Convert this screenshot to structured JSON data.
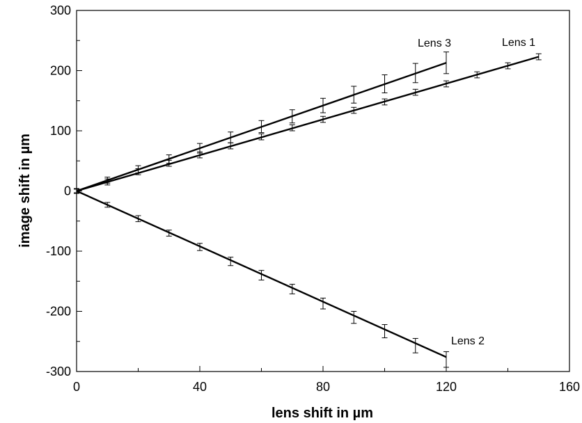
{
  "chart_data": {
    "type": "line",
    "xlabel": "lens shift in µm",
    "ylabel": "image shift in µm",
    "xlim": [
      0,
      160
    ],
    "ylim": [
      -300,
      300
    ],
    "x_ticks": [
      "0",
      "40",
      "80",
      "120",
      "160"
    ],
    "y_ticks": [
      "-300",
      "-200",
      "-100",
      "0",
      "100",
      "200",
      "300"
    ],
    "grid": false,
    "legend": "none",
    "line_color": "#000000",
    "series": [
      {
        "name": "Lens 1",
        "x": [
          0,
          10,
          20,
          30,
          40,
          50,
          60,
          70,
          80,
          90,
          100,
          110,
          120,
          130,
          140,
          150
        ],
        "y": [
          0,
          15,
          32,
          46,
          60,
          75,
          90,
          105,
          119,
          134,
          148,
          164,
          178,
          193,
          208,
          223
        ],
        "err": [
          4,
          5,
          5,
          5,
          5,
          5,
          5,
          5,
          5,
          5,
          5,
          5,
          5,
          5,
          5,
          5
        ],
        "fit": [
          [
            0,
            0
          ],
          [
            150,
            223
          ]
        ]
      },
      {
        "name": "Lens 2",
        "x": [
          0,
          10,
          20,
          30,
          40,
          50,
          60,
          70,
          80,
          90,
          100,
          110,
          120
        ],
        "y": [
          0,
          -23,
          -46,
          -70,
          -93,
          -117,
          -140,
          -163,
          -187,
          -210,
          -233,
          -257,
          -280
        ],
        "err": [
          4,
          4,
          5,
          5,
          6,
          7,
          8,
          8,
          9,
          10,
          11,
          12,
          13
        ],
        "fit": [
          [
            0,
            0
          ],
          [
            120,
            -276
          ]
        ]
      },
      {
        "name": "Lens 3",
        "x": [
          0,
          10,
          20,
          30,
          40,
          50,
          60,
          70,
          80,
          90,
          100,
          110,
          120
        ],
        "y": [
          0,
          18,
          36,
          53,
          71,
          89,
          107,
          124,
          142,
          160,
          178,
          196,
          213
        ],
        "err": [
          3,
          5,
          6,
          7,
          8,
          9,
          10,
          11,
          12,
          14,
          15,
          16,
          18
        ],
        "fit": [
          [
            0,
            0
          ],
          [
            120,
            213
          ]
        ]
      }
    ]
  }
}
